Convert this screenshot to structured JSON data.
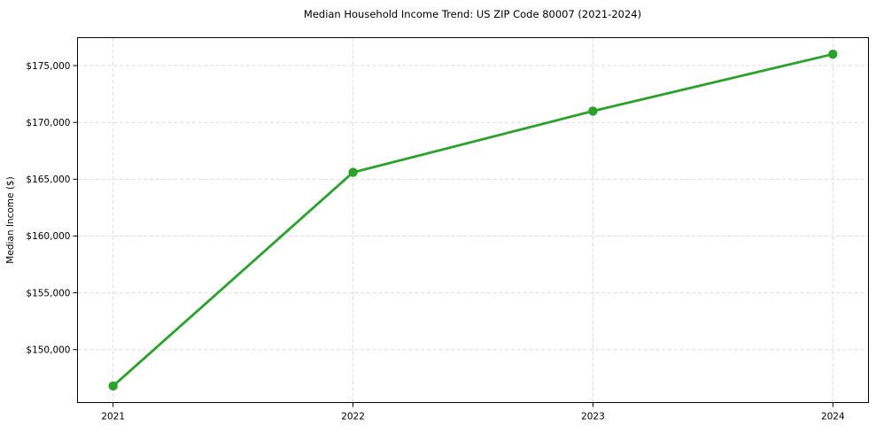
{
  "figure": {
    "background": "#ffffff"
  },
  "chart_data": {
    "type": "line",
    "title": "Median Household Income Trend: US ZIP Code 80007 (2021-2024)",
    "xlabel": "",
    "ylabel": "Median Income ($)",
    "categories": [
      "2021",
      "2022",
      "2023",
      "2024"
    ],
    "series": [
      {
        "name": "Median Income",
        "values": [
          146800,
          165600,
          171000,
          176000
        ],
        "color": "#2ca02c",
        "marker": "circle",
        "line_width": 2.8,
        "marker_radius": 5.2
      }
    ],
    "ylim": [
      145340,
      177460
    ],
    "yticks": [
      150000,
      155000,
      160000,
      165000,
      170000,
      175000
    ],
    "ytick_prefix": "$",
    "ytick_thousands_separator": ",",
    "grid": true,
    "grid_style": "dashed",
    "grid_color": "#dcdcdc",
    "axis_color": "#000000",
    "text_color": "#000000",
    "tick_font_size": 10.5,
    "legend": false
  }
}
